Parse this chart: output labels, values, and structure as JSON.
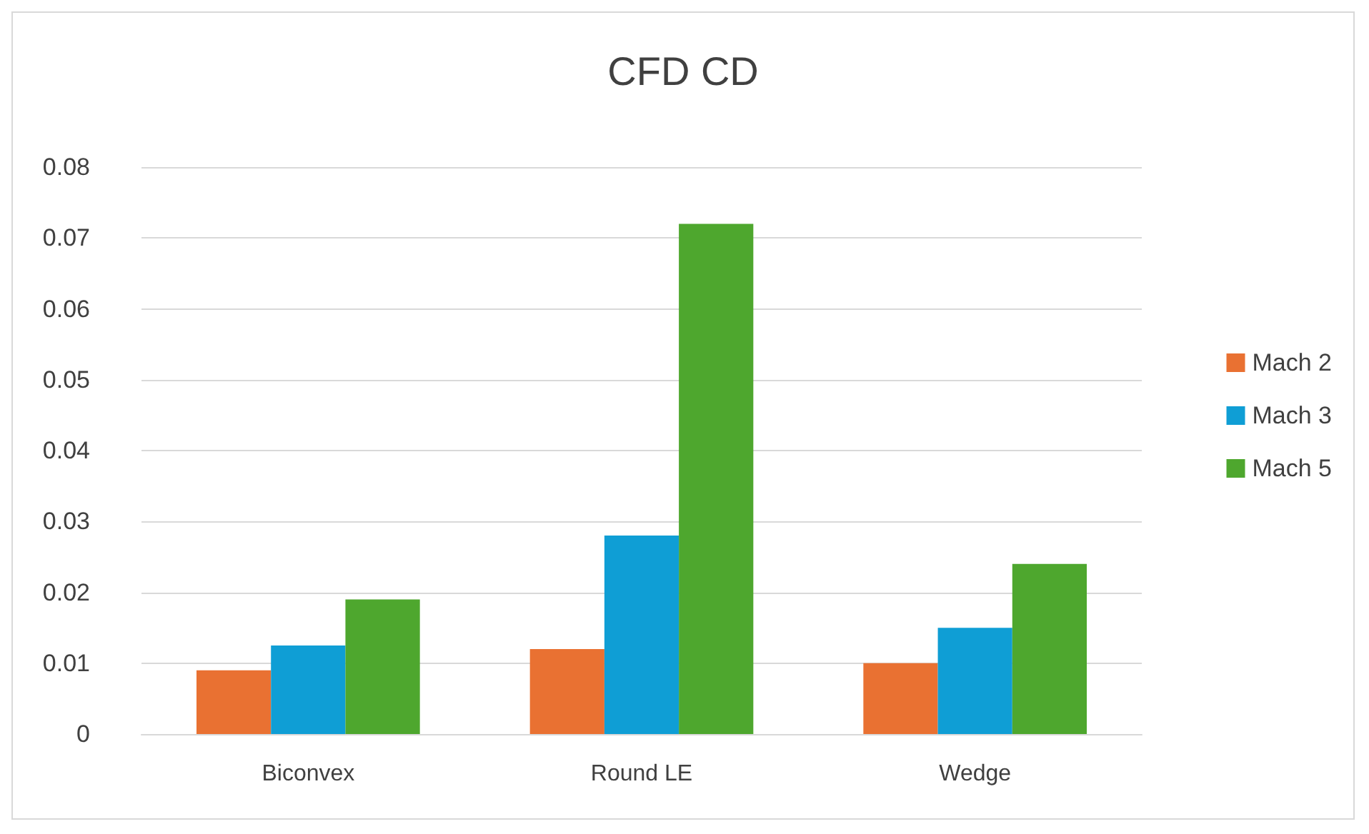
{
  "chart_data": {
    "type": "bar",
    "title": "CFD CD",
    "categories": [
      "Biconvex",
      "Round LE",
      "Wedge"
    ],
    "series": [
      {
        "name": "Mach 2",
        "color": "#e97132",
        "values": [
          0.009,
          0.012,
          0.01
        ]
      },
      {
        "name": "Mach 3",
        "color": "#0f9ed5",
        "values": [
          0.0125,
          0.028,
          0.015
        ]
      },
      {
        "name": "Mach 5",
        "color": "#4ea72e",
        "values": [
          0.019,
          0.072,
          0.024
        ]
      }
    ],
    "ylim": [
      0,
      0.08
    ],
    "yticks": [
      0,
      0.01,
      0.02,
      0.03,
      0.04,
      0.05,
      0.06,
      0.07,
      0.08
    ],
    "grid": "y",
    "legend": "right"
  }
}
